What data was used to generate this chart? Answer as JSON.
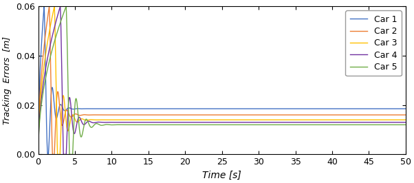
{
  "title": "",
  "xlabel": "Time [s]",
  "ylabel": "Tracking  Errors  [m]",
  "xlim": [
    0,
    50
  ],
  "ylim": [
    0,
    0.06
  ],
  "yticks": [
    0,
    0.02,
    0.04,
    0.06
  ],
  "xticks": [
    0,
    5,
    10,
    15,
    20,
    25,
    30,
    35,
    40,
    45,
    50
  ],
  "colors": [
    "#4472C4",
    "#ED7D31",
    "#FFC000",
    "#7030A0",
    "#70AD47"
  ],
  "labels": [
    "Car 1",
    "Car 2",
    "Car 3",
    "Car 4",
    "Car 5"
  ],
  "figsize": [
    6.02,
    2.66
  ],
  "dpi": 100,
  "params": [
    {
      "peak_t": 0.8,
      "ss": 0.0185,
      "omega": 5.5,
      "zeta": 1.4
    },
    {
      "peak_t": 1.5,
      "ss": 0.016,
      "omega": 5.2,
      "zeta": 1.3
    },
    {
      "peak_t": 2.2,
      "ss": 0.014,
      "omega": 5.0,
      "zeta": 1.25
    },
    {
      "peak_t": 3.0,
      "ss": 0.013,
      "omega": 4.8,
      "zeta": 1.2
    },
    {
      "peak_t": 3.8,
      "ss": 0.012,
      "omega": 4.5,
      "zeta": 1.1
    }
  ]
}
